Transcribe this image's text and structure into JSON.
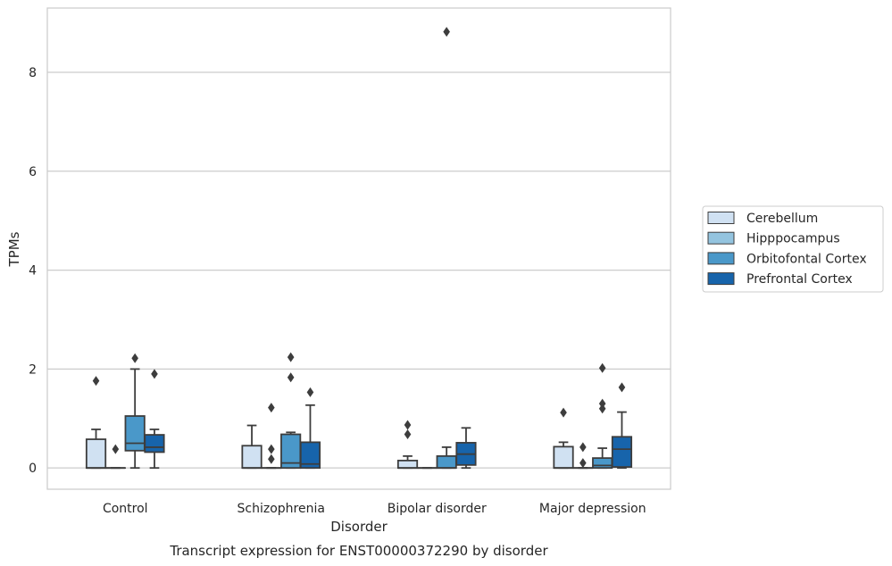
{
  "chart_data": {
    "type": "box",
    "title": "Transcript expression for ENST00000372290 by disorder",
    "xlabel": "Disorder",
    "ylabel": "TPMs",
    "ylim": [
      -0.43,
      9.3
    ],
    "yticks": [
      0,
      2,
      4,
      6,
      8
    ],
    "categories": [
      "Control",
      "Schizophrenia",
      "Bipolar disorder",
      "Major depression"
    ],
    "grid": "horizontal",
    "legend_position": "right",
    "series": [
      {
        "name": "Cerebellum",
        "color": "#d0e1f2",
        "boxes": [
          {
            "q1": 0.0,
            "median": 0.0,
            "q3": 0.58,
            "whisker_low": 0.0,
            "whisker_high": 0.78,
            "outliers": [
              1.76
            ]
          },
          {
            "q1": 0.0,
            "median": 0.0,
            "q3": 0.45,
            "whisker_low": 0.0,
            "whisker_high": 0.86,
            "outliers": []
          },
          {
            "q1": 0.0,
            "median": 0.0,
            "q3": 0.15,
            "whisker_low": 0.0,
            "whisker_high": 0.24,
            "outliers": [
              0.68,
              0.87
            ]
          },
          {
            "q1": 0.0,
            "median": 0.0,
            "q3": 0.43,
            "whisker_low": 0.0,
            "whisker_high": 0.52,
            "outliers": [
              1.12
            ]
          }
        ]
      },
      {
        "name": "Hipppocampus",
        "color": "#94c4df",
        "boxes": [
          {
            "q1": 0.0,
            "median": 0.0,
            "q3": 0.0,
            "whisker_low": 0.0,
            "whisker_high": 0.0,
            "outliers": [
              0.38
            ]
          },
          {
            "q1": 0.0,
            "median": 0.0,
            "q3": 0.0,
            "whisker_low": 0.0,
            "whisker_high": 0.0,
            "outliers": [
              0.18,
              0.38,
              1.22
            ]
          },
          {
            "q1": 0.0,
            "median": 0.0,
            "q3": 0.0,
            "whisker_low": 0.0,
            "whisker_high": 0.0,
            "outliers": []
          },
          {
            "q1": 0.0,
            "median": 0.0,
            "q3": 0.0,
            "whisker_low": 0.0,
            "whisker_high": 0.0,
            "outliers": [
              0.1,
              0.42
            ]
          }
        ]
      },
      {
        "name": "Orbitofontal Cortex",
        "color": "#4a98c9",
        "boxes": [
          {
            "q1": 0.35,
            "median": 0.5,
            "q3": 1.05,
            "whisker_low": 0.0,
            "whisker_high": 2.0,
            "outliers": [
              2.22
            ]
          },
          {
            "q1": 0.0,
            "median": 0.1,
            "q3": 0.68,
            "whisker_low": 0.0,
            "whisker_high": 0.72,
            "outliers": [
              1.83,
              2.24
            ]
          },
          {
            "q1": 0.0,
            "median": 0.0,
            "q3": 0.24,
            "whisker_low": 0.0,
            "whisker_high": 0.42,
            "outliers": [
              8.82
            ]
          },
          {
            "q1": 0.0,
            "median": 0.05,
            "q3": 0.2,
            "whisker_low": 0.0,
            "whisker_high": 0.4,
            "outliers": [
              1.2,
              1.3,
              2.02
            ]
          }
        ]
      },
      {
        "name": "Prefrontal Cortex",
        "color": "#1764ab",
        "boxes": [
          {
            "q1": 0.32,
            "median": 0.42,
            "q3": 0.67,
            "whisker_low": 0.0,
            "whisker_high": 0.78,
            "outliers": [
              1.9
            ]
          },
          {
            "q1": 0.0,
            "median": 0.08,
            "q3": 0.52,
            "whisker_low": 0.0,
            "whisker_high": 1.27,
            "outliers": [
              1.53
            ]
          },
          {
            "q1": 0.06,
            "median": 0.28,
            "q3": 0.51,
            "whisker_low": 0.0,
            "whisker_high": 0.81,
            "outliers": []
          },
          {
            "q1": 0.02,
            "median": 0.38,
            "q3": 0.63,
            "whisker_low": 0.0,
            "whisker_high": 1.13,
            "outliers": [
              1.63
            ]
          }
        ]
      }
    ]
  }
}
